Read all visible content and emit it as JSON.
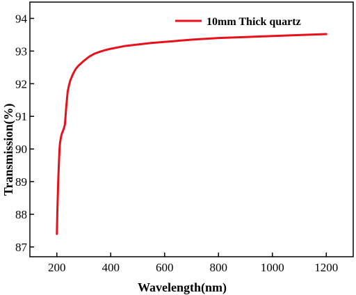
{
  "chart_data": {
    "type": "line",
    "xlabel": "Wavelength(nm)",
    "ylabel": "Transmission(%)",
    "xlim": [
      100,
      1300
    ],
    "ylim": [
      86.7,
      94.5
    ],
    "xticks": [
      200,
      400,
      600,
      800,
      1000,
      1200
    ],
    "yticks": [
      87,
      88,
      89,
      90,
      91,
      92,
      93,
      94
    ],
    "grid": false,
    "legend_position": "top-right",
    "series": [
      {
        "name": "10mm Thick quartz",
        "color": "#e8101a",
        "x": [
          200,
          202,
          205,
          208,
          210,
          212,
          215,
          218,
          220,
          225,
          230,
          235,
          240,
          245,
          250,
          255,
          260,
          270,
          280,
          300,
          320,
          340,
          360,
          380,
          400,
          450,
          500,
          550,
          600,
          700,
          800,
          900,
          1000,
          1100,
          1200
        ],
        "y": [
          87.4,
          88.1,
          89.0,
          89.6,
          90.0,
          90.2,
          90.35,
          90.45,
          90.5,
          90.6,
          90.75,
          91.3,
          91.75,
          91.95,
          92.1,
          92.2,
          92.3,
          92.45,
          92.55,
          92.7,
          92.83,
          92.92,
          92.98,
          93.03,
          93.07,
          93.15,
          93.2,
          93.25,
          93.28,
          93.35,
          93.4,
          93.43,
          93.46,
          93.49,
          93.52
        ]
      }
    ]
  }
}
